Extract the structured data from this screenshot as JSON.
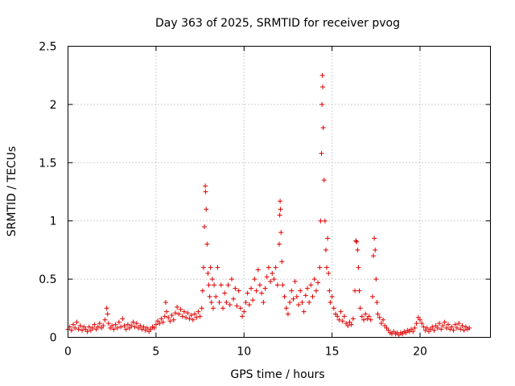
{
  "chart_data": {
    "type": "scatter",
    "title": "Day 363 of 2025, SRMTID for receiver pvog",
    "xlabel": "GPS time / hours",
    "ylabel": "SRMTID / TECUs",
    "xlim": [
      0,
      24
    ],
    "ylim": [
      0,
      2.5
    ],
    "xticks": [
      0,
      5,
      10,
      15,
      20
    ],
    "yticks": [
      0,
      0.5,
      1,
      1.5,
      2,
      2.5
    ],
    "xtick_labels": [
      "0",
      "5",
      "10",
      "15",
      "20"
    ],
    "ytick_labels": [
      "0",
      "0.5",
      "1",
      "1.5",
      "2",
      "2.5"
    ],
    "grid": true,
    "marker": "+",
    "color": "#e00000",
    "series": [
      {
        "name": "SRMTID",
        "points": [
          [
            0.0,
            0.07
          ],
          [
            0.1,
            0.09
          ],
          [
            0.2,
            0.06
          ],
          [
            0.3,
            0.11
          ],
          [
            0.4,
            0.08
          ],
          [
            0.5,
            0.13
          ],
          [
            0.6,
            0.07
          ],
          [
            0.7,
            0.1
          ],
          [
            0.8,
            0.06
          ],
          [
            0.9,
            0.09
          ],
          [
            1.0,
            0.07
          ],
          [
            1.1,
            0.05
          ],
          [
            1.2,
            0.09
          ],
          [
            1.3,
            0.06
          ],
          [
            1.4,
            0.08
          ],
          [
            1.5,
            0.11
          ],
          [
            1.6,
            0.07
          ],
          [
            1.7,
            0.09
          ],
          [
            1.8,
            0.12
          ],
          [
            1.9,
            0.08
          ],
          [
            2.0,
            0.1
          ],
          [
            2.1,
            0.15
          ],
          [
            2.2,
            0.25
          ],
          [
            2.25,
            0.2
          ],
          [
            2.3,
            0.12
          ],
          [
            2.4,
            0.08
          ],
          [
            2.5,
            0.1
          ],
          [
            2.6,
            0.07
          ],
          [
            2.7,
            0.11
          ],
          [
            2.8,
            0.08
          ],
          [
            2.9,
            0.13
          ],
          [
            3.0,
            0.09
          ],
          [
            3.1,
            0.16
          ],
          [
            3.2,
            0.1
          ],
          [
            3.3,
            0.07
          ],
          [
            3.4,
            0.11
          ],
          [
            3.5,
            0.08
          ],
          [
            3.6,
            0.1
          ],
          [
            3.7,
            0.13
          ],
          [
            3.8,
            0.09
          ],
          [
            3.9,
            0.12
          ],
          [
            4.0,
            0.08
          ],
          [
            4.1,
            0.1
          ],
          [
            4.2,
            0.07
          ],
          [
            4.3,
            0.09
          ],
          [
            4.4,
            0.06
          ],
          [
            4.5,
            0.08
          ],
          [
            4.6,
            0.05
          ],
          [
            4.7,
            0.07
          ],
          [
            4.8,
            0.09
          ],
          [
            4.9,
            0.08
          ],
          [
            5.0,
            0.11
          ],
          [
            5.1,
            0.14
          ],
          [
            5.2,
            0.12
          ],
          [
            5.3,
            0.16
          ],
          [
            5.4,
            0.13
          ],
          [
            5.5,
            0.18
          ],
          [
            5.55,
            0.3
          ],
          [
            5.6,
            0.22
          ],
          [
            5.7,
            0.17
          ],
          [
            5.8,
            0.14
          ],
          [
            5.9,
            0.19
          ],
          [
            6.0,
            0.15
          ],
          [
            6.1,
            0.21
          ],
          [
            6.2,
            0.26
          ],
          [
            6.3,
            0.2
          ],
          [
            6.4,
            0.24
          ],
          [
            6.5,
            0.18
          ],
          [
            6.6,
            0.22
          ],
          [
            6.7,
            0.17
          ],
          [
            6.8,
            0.21
          ],
          [
            6.9,
            0.16
          ],
          [
            7.0,
            0.19
          ],
          [
            7.1,
            0.15
          ],
          [
            7.2,
            0.2
          ],
          [
            7.3,
            0.17
          ],
          [
            7.4,
            0.22
          ],
          [
            7.5,
            0.18
          ],
          [
            7.6,
            0.25
          ],
          [
            7.65,
            0.4
          ],
          [
            7.7,
            0.6
          ],
          [
            7.75,
            0.95
          ],
          [
            7.8,
            1.3
          ],
          [
            7.82,
            1.25
          ],
          [
            7.85,
            1.1
          ],
          [
            7.9,
            0.8
          ],
          [
            7.95,
            0.55
          ],
          [
            8.0,
            0.45
          ],
          [
            8.05,
            0.35
          ],
          [
            8.1,
            0.6
          ],
          [
            8.15,
            0.3
          ],
          [
            8.2,
            0.5
          ],
          [
            8.25,
            0.25
          ],
          [
            8.3,
            0.45
          ],
          [
            8.4,
            0.35
          ],
          [
            8.5,
            0.6
          ],
          [
            8.6,
            0.3
          ],
          [
            8.7,
            0.45
          ],
          [
            8.8,
            0.25
          ],
          [
            8.9,
            0.38
          ],
          [
            9.0,
            0.3
          ],
          [
            9.1,
            0.45
          ],
          [
            9.2,
            0.28
          ],
          [
            9.3,
            0.5
          ],
          [
            9.4,
            0.33
          ],
          [
            9.5,
            0.42
          ],
          [
            9.6,
            0.27
          ],
          [
            9.7,
            0.4
          ],
          [
            9.8,
            0.25
          ],
          [
            9.9,
            0.18
          ],
          [
            10.0,
            0.22
          ],
          [
            10.1,
            0.3
          ],
          [
            10.2,
            0.38
          ],
          [
            10.3,
            0.28
          ],
          [
            10.4,
            0.42
          ],
          [
            10.5,
            0.32
          ],
          [
            10.6,
            0.5
          ],
          [
            10.7,
            0.4
          ],
          [
            10.8,
            0.58
          ],
          [
            10.9,
            0.45
          ],
          [
            11.0,
            0.38
          ],
          [
            11.1,
            0.3
          ],
          [
            11.2,
            0.42
          ],
          [
            11.3,
            0.52
          ],
          [
            11.4,
            0.6
          ],
          [
            11.5,
            0.48
          ],
          [
            11.6,
            0.55
          ],
          [
            11.7,
            0.5
          ],
          [
            11.8,
            0.6
          ],
          [
            11.9,
            0.45
          ],
          [
            12.0,
            0.8
          ],
          [
            12.03,
            1.05
          ],
          [
            12.05,
            1.17
          ],
          [
            12.07,
            1.1
          ],
          [
            12.1,
            0.9
          ],
          [
            12.15,
            0.65
          ],
          [
            12.2,
            0.45
          ],
          [
            12.3,
            0.35
          ],
          [
            12.4,
            0.25
          ],
          [
            12.5,
            0.2
          ],
          [
            12.6,
            0.3
          ],
          [
            12.7,
            0.4
          ],
          [
            12.8,
            0.33
          ],
          [
            12.9,
            0.48
          ],
          [
            13.0,
            0.35
          ],
          [
            13.1,
            0.28
          ],
          [
            13.2,
            0.4
          ],
          [
            13.3,
            0.3
          ],
          [
            13.4,
            0.22
          ],
          [
            13.5,
            0.36
          ],
          [
            13.6,
            0.42
          ],
          [
            13.7,
            0.3
          ],
          [
            13.8,
            0.45
          ],
          [
            13.9,
            0.35
          ],
          [
            14.0,
            0.5
          ],
          [
            14.1,
            0.4
          ],
          [
            14.2,
            0.47
          ],
          [
            14.3,
            0.6
          ],
          [
            14.35,
            1.0
          ],
          [
            14.4,
            1.58
          ],
          [
            14.43,
            2.0
          ],
          [
            14.45,
            2.25
          ],
          [
            14.47,
            2.15
          ],
          [
            14.5,
            1.8
          ],
          [
            14.55,
            1.35
          ],
          [
            14.6,
            1.0
          ],
          [
            14.65,
            0.75
          ],
          [
            14.7,
            0.6
          ],
          [
            14.75,
            0.85
          ],
          [
            14.8,
            0.55
          ],
          [
            14.85,
            0.4
          ],
          [
            14.9,
            0.3
          ],
          [
            15.0,
            0.35
          ],
          [
            15.1,
            0.25
          ],
          [
            15.2,
            0.2
          ],
          [
            15.3,
            0.18
          ],
          [
            15.4,
            0.15
          ],
          [
            15.5,
            0.22
          ],
          [
            15.6,
            0.14
          ],
          [
            15.7,
            0.18
          ],
          [
            15.8,
            0.12
          ],
          [
            15.9,
            0.1
          ],
          [
            16.0,
            0.13
          ],
          [
            16.1,
            0.11
          ],
          [
            16.2,
            0.16
          ],
          [
            16.3,
            0.4
          ],
          [
            16.35,
            0.83
          ],
          [
            16.4,
            0.82
          ],
          [
            16.45,
            0.75
          ],
          [
            16.5,
            0.6
          ],
          [
            16.55,
            0.4
          ],
          [
            16.6,
            0.25
          ],
          [
            16.7,
            0.18
          ],
          [
            16.8,
            0.15
          ],
          [
            16.9,
            0.2
          ],
          [
            17.0,
            0.16
          ],
          [
            17.1,
            0.18
          ],
          [
            17.2,
            0.15
          ],
          [
            17.3,
            0.35
          ],
          [
            17.35,
            0.7
          ],
          [
            17.4,
            0.85
          ],
          [
            17.45,
            0.75
          ],
          [
            17.5,
            0.5
          ],
          [
            17.55,
            0.3
          ],
          [
            17.6,
            0.2
          ],
          [
            17.7,
            0.17
          ],
          [
            17.8,
            0.12
          ],
          [
            17.9,
            0.15
          ],
          [
            18.0,
            0.1
          ],
          [
            18.1,
            0.08
          ],
          [
            18.2,
            0.06
          ],
          [
            18.3,
            0.04
          ],
          [
            18.4,
            0.03
          ],
          [
            18.5,
            0.05
          ],
          [
            18.6,
            0.03
          ],
          [
            18.7,
            0.04
          ],
          [
            18.8,
            0.02
          ],
          [
            18.9,
            0.04
          ],
          [
            19.0,
            0.03
          ],
          [
            19.1,
            0.05
          ],
          [
            19.2,
            0.04
          ],
          [
            19.3,
            0.06
          ],
          [
            19.4,
            0.05
          ],
          [
            19.5,
            0.07
          ],
          [
            19.6,
            0.05
          ],
          [
            19.7,
            0.08
          ],
          [
            19.8,
            0.12
          ],
          [
            19.9,
            0.17
          ],
          [
            20.0,
            0.15
          ],
          [
            20.1,
            0.12
          ],
          [
            20.2,
            0.09
          ],
          [
            20.3,
            0.06
          ],
          [
            20.4,
            0.08
          ],
          [
            20.5,
            0.05
          ],
          [
            20.6,
            0.07
          ],
          [
            20.7,
            0.09
          ],
          [
            20.8,
            0.06
          ],
          [
            20.9,
            0.1
          ],
          [
            21.0,
            0.08
          ],
          [
            21.1,
            0.12
          ],
          [
            21.2,
            0.07
          ],
          [
            21.3,
            0.1
          ],
          [
            21.4,
            0.13
          ],
          [
            21.5,
            0.08
          ],
          [
            21.6,
            0.11
          ],
          [
            21.7,
            0.07
          ],
          [
            21.8,
            0.09
          ],
          [
            21.9,
            0.06
          ],
          [
            22.0,
            0.11
          ],
          [
            22.1,
            0.08
          ],
          [
            22.2,
            0.12
          ],
          [
            22.3,
            0.07
          ],
          [
            22.4,
            0.1
          ],
          [
            22.5,
            0.06
          ],
          [
            22.6,
            0.09
          ],
          [
            22.7,
            0.07
          ],
          [
            22.8,
            0.08
          ]
        ]
      }
    ]
  }
}
